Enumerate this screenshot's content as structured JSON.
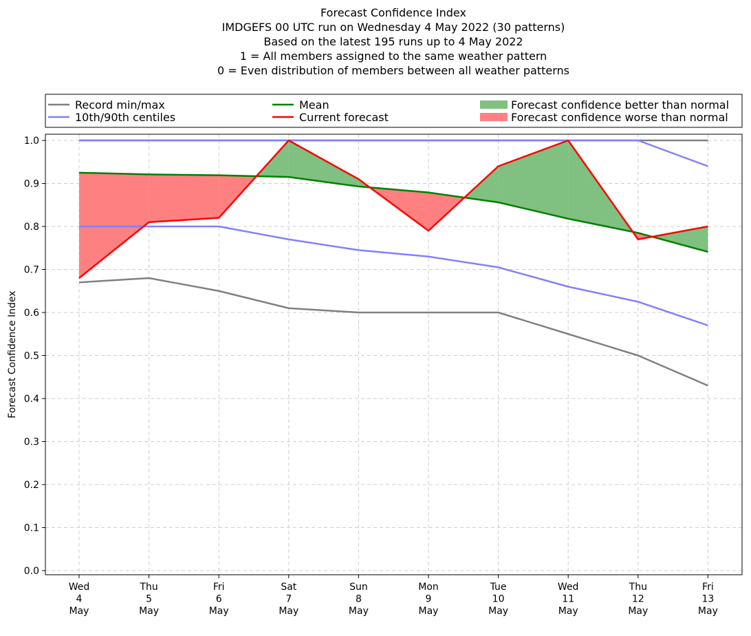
{
  "chart_data": {
    "type": "line",
    "title_lines": [
      "Forecast Confidence Index",
      "IMDGEFS 00 UTC run on Wednesday 4 May 2022 (30 patterns)",
      "Based on the latest 195 runs up to 4 May 2022",
      "1 = All members assigned to the same weather pattern",
      "0 = Even distribution of members between all weather patterns"
    ],
    "ylabel": "Forecast Confidence Index",
    "ylim": [
      0.0,
      1.0
    ],
    "yticks": [
      "0.0",
      "0.1",
      "0.2",
      "0.3",
      "0.4",
      "0.5",
      "0.6",
      "0.7",
      "0.8",
      "0.9",
      "1.0"
    ],
    "ytick_values": [
      0.0,
      0.1,
      0.2,
      0.3,
      0.4,
      0.5,
      0.6,
      0.7,
      0.8,
      0.9,
      1.0
    ],
    "categories": [
      [
        "Wed",
        "4",
        "May"
      ],
      [
        "Thu",
        "5",
        "May"
      ],
      [
        "Fri",
        "6",
        "May"
      ],
      [
        "Sat",
        "7",
        "May"
      ],
      [
        "Sun",
        "8",
        "May"
      ],
      [
        "Mon",
        "9",
        "May"
      ],
      [
        "Tue",
        "10",
        "May"
      ],
      [
        "Wed",
        "11",
        "May"
      ],
      [
        "Thu",
        "12",
        "May"
      ],
      [
        "Fri",
        "13",
        "May"
      ]
    ],
    "grid": true,
    "legend_placement": "top, above plot",
    "legend": [
      {
        "label": "Record min/max",
        "kind": "line",
        "color": "#808080"
      },
      {
        "label": "Mean",
        "kind": "line",
        "color": "#008000"
      },
      {
        "label": "Forecast confidence better than normal",
        "kind": "patch",
        "color": "#80c080"
      },
      {
        "label": "10th/90th centiles",
        "kind": "line",
        "color": "#8080ff"
      },
      {
        "label": "Current forecast",
        "kind": "line",
        "color": "#ff0000"
      },
      {
        "label": "Forecast confidence worse than normal",
        "kind": "patch",
        "color": "#ff8080"
      }
    ],
    "series": [
      {
        "name": "Record min/max",
        "role": "record_max",
        "color": "#808080",
        "values": [
          1.0,
          1.0,
          1.0,
          1.0,
          1.0,
          1.0,
          1.0,
          1.0,
          1.0,
          1.0
        ]
      },
      {
        "name": "Record min/max",
        "role": "record_min",
        "color": "#808080",
        "values": [
          0.67,
          0.68,
          0.65,
          0.61,
          0.6,
          0.6,
          0.6,
          0.55,
          0.5,
          0.43
        ]
      },
      {
        "name": "10th/90th centiles",
        "role": "p90",
        "color": "#8080ff",
        "values": [
          1.0,
          1.0,
          1.0,
          1.0,
          1.0,
          1.0,
          1.0,
          1.0,
          1.0,
          0.94
        ]
      },
      {
        "name": "10th/90th centiles",
        "role": "p10",
        "color": "#8080ff",
        "values": [
          0.8,
          0.8,
          0.8,
          0.77,
          0.745,
          0.73,
          0.705,
          0.66,
          0.625,
          0.57
        ]
      },
      {
        "name": "Mean",
        "role": "mean",
        "color": "#008000",
        "values": [
          0.925,
          0.921,
          0.919,
          0.915,
          0.893,
          0.879,
          0.856,
          0.818,
          0.785,
          0.741
        ]
      },
      {
        "name": "Current forecast",
        "role": "current",
        "color": "#ff0000",
        "values": [
          0.68,
          0.81,
          0.82,
          1.0,
          0.91,
          0.79,
          0.94,
          1.0,
          0.77,
          0.8
        ]
      }
    ],
    "fill_better_color": "#80c080",
    "fill_worse_color": "#ff8080"
  }
}
